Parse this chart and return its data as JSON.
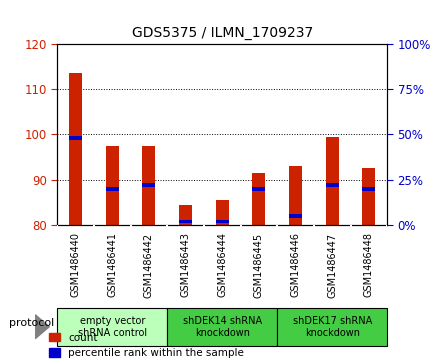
{
  "title": "GDS5375 / ILMN_1709237",
  "samples": [
    "GSM1486440",
    "GSM1486441",
    "GSM1486442",
    "GSM1486443",
    "GSM1486444",
    "GSM1486445",
    "GSM1486446",
    "GSM1486447",
    "GSM1486448"
  ],
  "count_values": [
    113.5,
    97.5,
    97.5,
    84.5,
    85.5,
    91.5,
    93.0,
    99.5,
    92.5
  ],
  "percentile_values": [
    48,
    20,
    22,
    2,
    2,
    20,
    5,
    22,
    20
  ],
  "ylim_left": [
    80,
    120
  ],
  "ylim_right": [
    0,
    100
  ],
  "yticks_left": [
    80,
    90,
    100,
    110,
    120
  ],
  "yticks_right": [
    0,
    25,
    50,
    75,
    100
  ],
  "bar_color": "#cc2200",
  "marker_color": "#0000cc",
  "bar_width": 0.35,
  "groups": [
    {
      "label": "empty vector\nshRNA control",
      "start": 0,
      "end": 2,
      "color": "#bbffbb"
    },
    {
      "label": "shDEK14 shRNA\nknockdown",
      "start": 3,
      "end": 5,
      "color": "#44cc44"
    },
    {
      "label": "shDEK17 shRNA\nknockdown",
      "start": 6,
      "end": 8,
      "color": "#44cc44"
    }
  ],
  "tick_color_left": "#cc2200",
  "tick_color_right": "#0000cc",
  "xtick_bg": "#d8d8d8",
  "legend_count": "count",
  "legend_percentile": "percentile rank within the sample"
}
